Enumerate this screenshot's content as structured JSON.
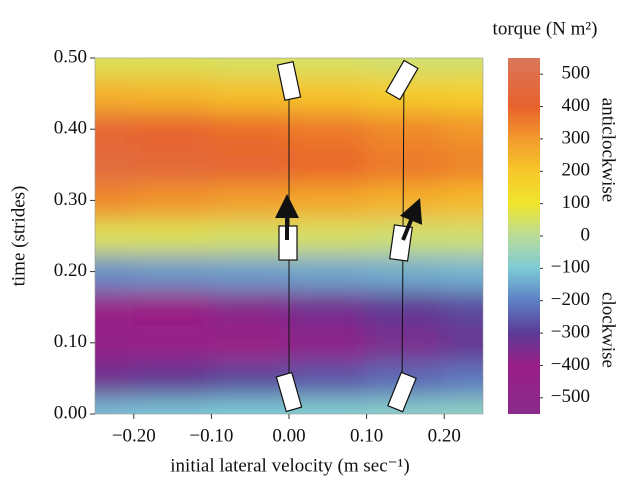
{
  "chart_data": {
    "type": "heatmap",
    "x_label": "initial lateral velocity (m sec⁻¹)",
    "y_label": "time (strides)",
    "colorbar_title": "torque (N m²)",
    "annotations": [
      "anticlockwise",
      "clockwise"
    ],
    "x": [
      -0.25,
      -0.15,
      -0.05,
      0.05,
      0.15,
      0.25
    ],
    "y": [
      0,
      0.05,
      0.1,
      0.15,
      0.2,
      0.25,
      0.3,
      0.35,
      0.4,
      0.45,
      0.5
    ],
    "z": [
      [
        -120,
        -110,
        -100,
        -90,
        -80,
        -70
      ],
      [
        -330,
        -310,
        -280,
        -260,
        -230,
        -210
      ],
      [
        -460,
        -440,
        -410,
        -380,
        -350,
        -320
      ],
      [
        -420,
        -400,
        -370,
        -340,
        -310,
        -280
      ],
      [
        -180,
        -170,
        -160,
        -150,
        -140,
        -130
      ],
      [
        60,
        60,
        50,
        50,
        40,
        40
      ],
      [
        330,
        310,
        290,
        270,
        250,
        230
      ],
      [
        470,
        450,
        420,
        390,
        360,
        340
      ],
      [
        430,
        410,
        380,
        360,
        330,
        310
      ],
      [
        250,
        240,
        220,
        210,
        190,
        180
      ],
      [
        60,
        60,
        50,
        50,
        40,
        40
      ]
    ],
    "xlim": [
      -0.25,
      0.25
    ],
    "ylim": [
      0,
      0.5
    ],
    "xticks": [
      {
        "value": -0.2,
        "label": "−0.20"
      },
      {
        "value": -0.1,
        "label": "−0.10"
      },
      {
        "value": 0,
        "label": "0.00"
      },
      {
        "value": 0.1,
        "label": "0.10"
      },
      {
        "value": 0.2,
        "label": "0.20"
      }
    ],
    "yticks": [
      {
        "value": 0,
        "label": "0.00"
      },
      {
        "value": 0.1,
        "label": "0.10"
      },
      {
        "value": 0.2,
        "label": "0.20"
      },
      {
        "value": 0.3,
        "label": "0.30"
      },
      {
        "value": 0.4,
        "label": "0.40"
      },
      {
        "value": 0.5,
        "label": "0.50"
      }
    ],
    "clim": [
      -550,
      550
    ],
    "cticks": [
      {
        "value": -500,
        "label": "−500"
      },
      {
        "value": -400,
        "label": "−400"
      },
      {
        "value": -300,
        "label": "−300"
      },
      {
        "value": -200,
        "label": "−200"
      },
      {
        "value": -100,
        "label": "−100"
      },
      0,
      100,
      200,
      300,
      400,
      500
    ],
    "colorscale": [
      {
        "value": -550,
        "color": "#8a2a8c"
      },
      {
        "value": -400,
        "color": "#9a1f86"
      },
      {
        "value": -300,
        "color": "#5b3a96"
      },
      {
        "value": -200,
        "color": "#5d7fc4"
      },
      {
        "value": -100,
        "color": "#7ccbd6"
      },
      {
        "value": 0,
        "color": "#b9dc98"
      },
      {
        "value": 100,
        "color": "#f0e52c"
      },
      {
        "value": 200,
        "color": "#f6c82a"
      },
      {
        "value": 300,
        "color": "#f29a2c"
      },
      {
        "value": 400,
        "color": "#e8622c"
      },
      {
        "value": 550,
        "color": "#d9775a"
      }
    ]
  }
}
